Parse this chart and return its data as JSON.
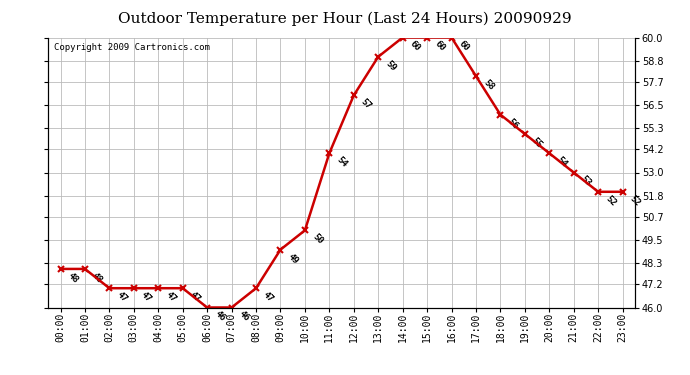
{
  "title": "Outdoor Temperature per Hour (Last 24 Hours) 20090929",
  "copyright_text": "Copyright 2009 Cartronics.com",
  "hours": [
    "00:00",
    "01:00",
    "02:00",
    "03:00",
    "04:00",
    "05:00",
    "06:00",
    "07:00",
    "08:00",
    "09:00",
    "10:00",
    "11:00",
    "12:00",
    "13:00",
    "14:00",
    "15:00",
    "16:00",
    "17:00",
    "18:00",
    "19:00",
    "20:00",
    "21:00",
    "22:00",
    "23:00"
  ],
  "temperatures": [
    48,
    48,
    47,
    47,
    47,
    47,
    46,
    46,
    47,
    49,
    50,
    54,
    57,
    59,
    60,
    60,
    60,
    58,
    56,
    55,
    54,
    53,
    52,
    52
  ],
  "line_color": "#cc0000",
  "marker_color": "#cc0000",
  "marker_style": "x",
  "marker_size": 5,
  "line_width": 1.8,
  "marker_linewidth": 1.5,
  "ylim": [
    46.0,
    60.0
  ],
  "yticks": [
    46.0,
    47.2,
    48.3,
    49.5,
    50.7,
    51.8,
    53.0,
    54.2,
    55.3,
    56.5,
    57.7,
    58.8,
    60.0
  ],
  "background_color": "#ffffff",
  "plot_bg_color": "#ffffff",
  "grid_color": "#bbbbbb",
  "title_fontsize": 11,
  "tick_fontsize": 7,
  "annotation_fontsize": 6.5,
  "annotation_rotation": -45,
  "copyright_fontsize": 6.5
}
